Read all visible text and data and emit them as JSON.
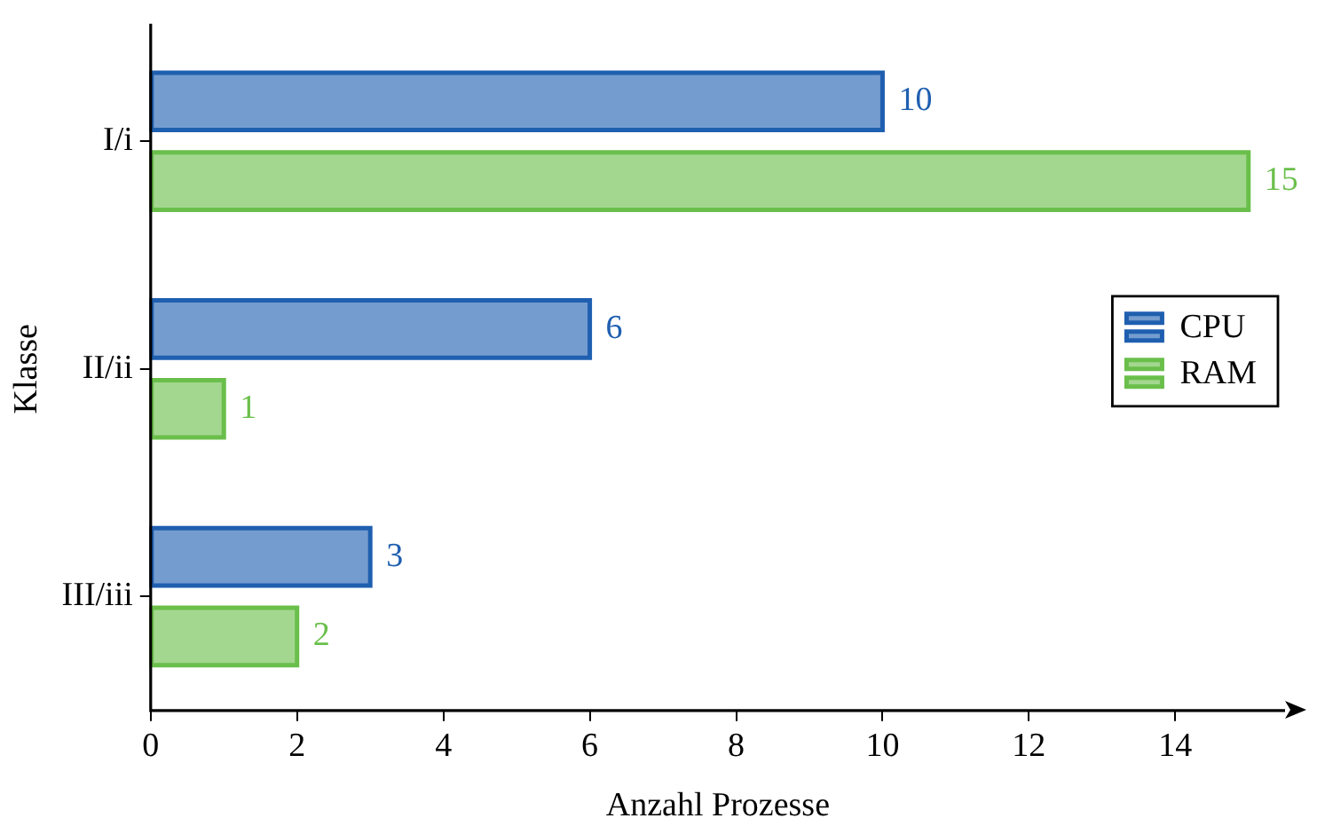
{
  "chart_data": {
    "type": "bar",
    "orientation": "horizontal",
    "xlabel": "Anzahl Prozesse",
    "ylabel": "Klasse",
    "categories": [
      "I/i",
      "II/ii",
      "III/iii"
    ],
    "series": [
      {
        "name": "CPU",
        "color": "#1f5fb0",
        "values": [
          10,
          6,
          3
        ]
      },
      {
        "name": "RAM",
        "color": "#6abf4b",
        "values": [
          15,
          1,
          2
        ]
      }
    ],
    "xlim": [
      0,
      15.5
    ],
    "xticks": [
      0,
      2,
      4,
      6,
      8,
      10,
      12,
      14
    ],
    "grid": false,
    "legend": "right",
    "data_labels": true
  }
}
